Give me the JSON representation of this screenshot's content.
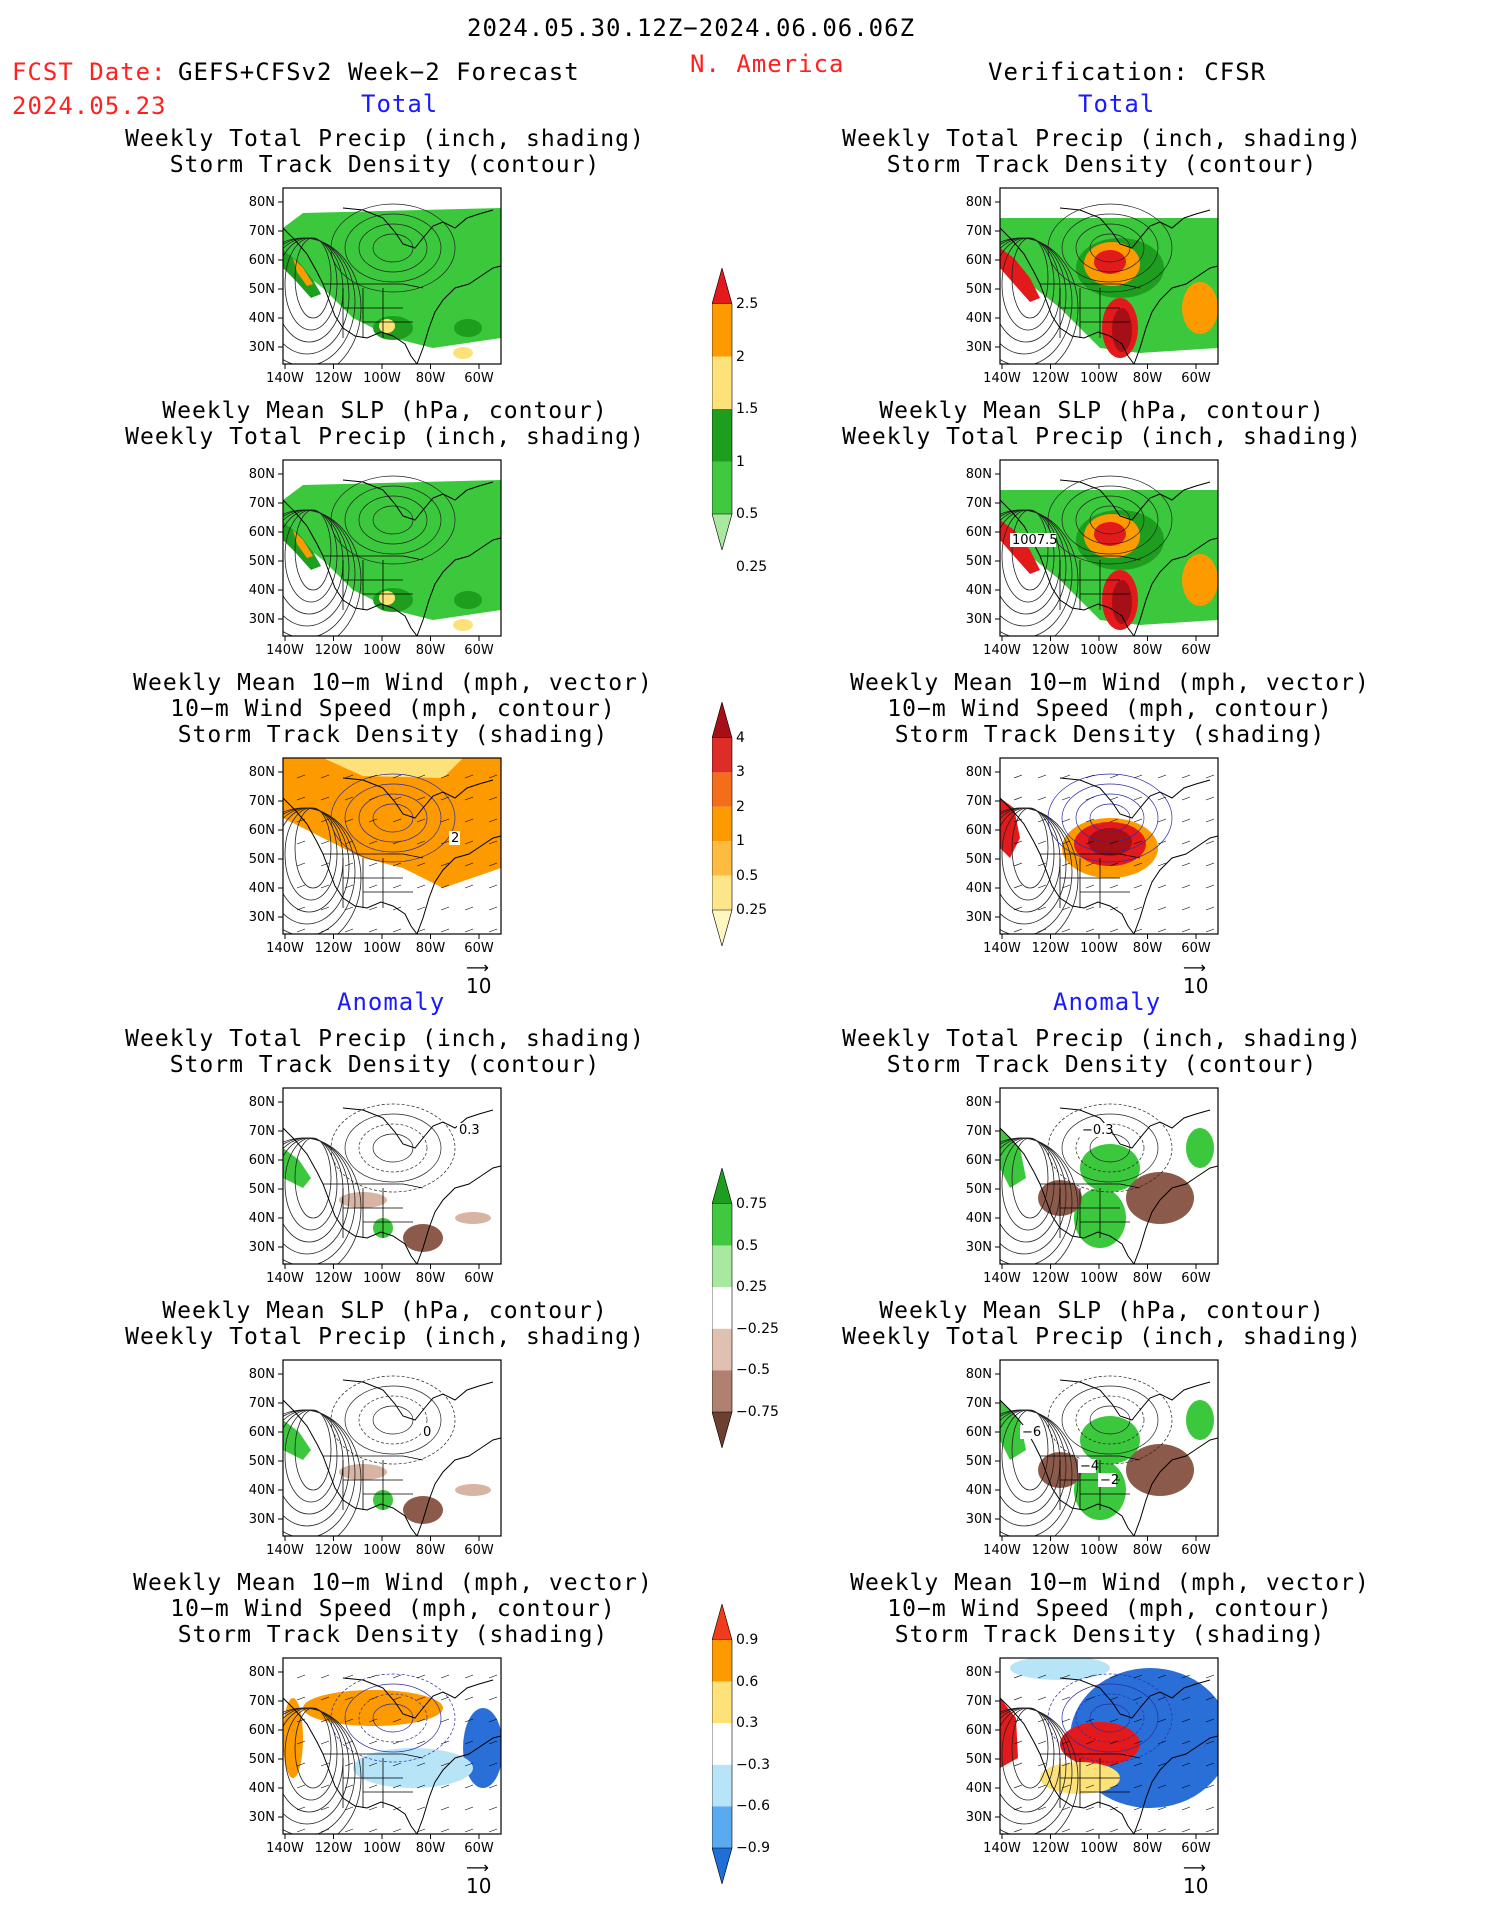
{
  "header": {
    "date_range": "2024.05.30.12Z−2024.06.06.06Z",
    "region": "N. America",
    "fcst_label": "FCST Date:",
    "fcst_model": "GEFS+CFSv2 Week−2 Forecast",
    "fcst_date": "2024.05.23",
    "verification": "Verification: CFSR"
  },
  "sections": {
    "total": "Total",
    "anomaly": "Anomaly"
  },
  "titles": {
    "precip_storm": [
      "Weekly Total Precip (inch, shading)",
      "Storm Track Density (contour)"
    ],
    "slp_precip": [
      "Weekly Mean SLP (hPa, contour)",
      "Weekly Total Precip (inch, shading)"
    ],
    "wind_storm": [
      "Weekly Mean 10−m Wind (mph, vector)",
      "10−m Wind Speed (mph, contour)",
      "Storm Track Density (shading)"
    ]
  },
  "axes": {
    "lat_labels": [
      "80N",
      "70N",
      "60N",
      "50N",
      "40N",
      "30N"
    ],
    "lon_labels": [
      "140W",
      "120W",
      "100W",
      "80W",
      "60W"
    ]
  },
  "vector_ref": "10",
  "panel_labels": {
    "slp_1007": "1007.5",
    "wind_2": "2",
    "anom_03": "0.3",
    "anom_neg03": "−0.3",
    "anom_6": "−6",
    "anom_4": "−4",
    "anom_2": "−2",
    "anom_0": "0"
  },
  "colorbars": {
    "precip_total": {
      "labels": [
        "2.5",
        "2",
        "1.5",
        "1",
        "0.5",
        "0.25"
      ],
      "colors": [
        "#e31a1c",
        "#fd9a00",
        "#fde27a",
        "#1e9e1e",
        "#41c841",
        "#a8e8a0"
      ]
    },
    "storm_total": {
      "labels": [
        "4",
        "3",
        "2",
        "1",
        "0.5",
        "0.25"
      ],
      "colors": [
        "#a50f15",
        "#de2d26",
        "#f46d1a",
        "#fd9a00",
        "#fdbb3f",
        "#fde68a",
        "#fff6c0"
      ]
    },
    "precip_anom": {
      "labels": [
        "0.75",
        "0.5",
        "0.25",
        "−0.25",
        "−0.5",
        "−0.75"
      ],
      "colors": [
        "#1e9e1e",
        "#41c841",
        "#a8e8a0",
        "#ffffff",
        "#e0c0b0",
        "#b08070",
        "#6b4030"
      ]
    },
    "storm_anom": {
      "labels": [
        "0.9",
        "0.6",
        "0.3",
        "−0.3",
        "−0.6",
        "−0.9"
      ],
      "colors": [
        "#f03c1c",
        "#fd9a00",
        "#fde27a",
        "#ffffff",
        "#b8e4f8",
        "#5aaaf0",
        "#1f6fd8"
      ]
    }
  },
  "panel_colors": {
    "green": "#3cc83c",
    "dkgreen": "#1e9e1e",
    "ltgreen": "#a8e8a0",
    "orange": "#fd9a00",
    "red": "#e31a1c",
    "darkred": "#a50f15",
    "yellow": "#fde27a",
    "brown": "#8b5a4a",
    "ltbrown": "#d8b4a4",
    "blue": "#2a6fd8",
    "ltblue": "#b8e4f8"
  }
}
